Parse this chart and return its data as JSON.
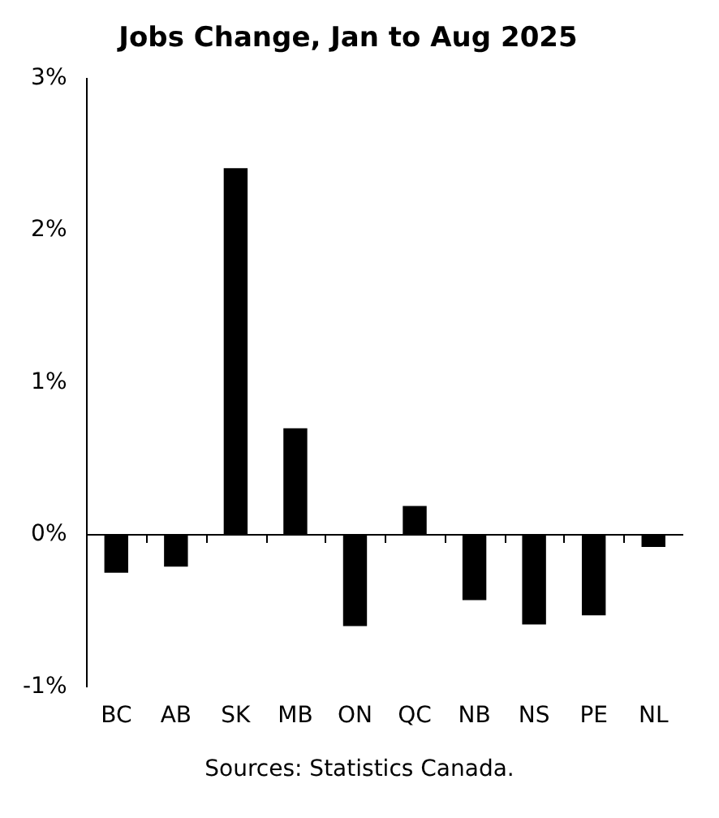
{
  "chart_data": {
    "type": "bar",
    "title": "Jobs Change, Jan to Aug 2025",
    "categories": [
      "BC",
      "AB",
      "SK",
      "MB",
      "ON",
      "QC",
      "NB",
      "NS",
      "PE",
      "NL"
    ],
    "values": [
      -0.25,
      -0.21,
      2.41,
      0.7,
      -0.6,
      0.19,
      -0.43,
      -0.59,
      -0.53,
      -0.08
    ],
    "color": "#000000",
    "ylim": [
      -1,
      3
    ],
    "yticks": [
      {
        "value": -1,
        "label": "-1%"
      },
      {
        "value": 0,
        "label": "0%"
      },
      {
        "value": 1,
        "label": "1%"
      },
      {
        "value": 2,
        "label": "2%"
      },
      {
        "value": 3,
        "label": "3%"
      }
    ],
    "legend": false,
    "annotations": [
      "Sources: Statistics Canada."
    ]
  }
}
